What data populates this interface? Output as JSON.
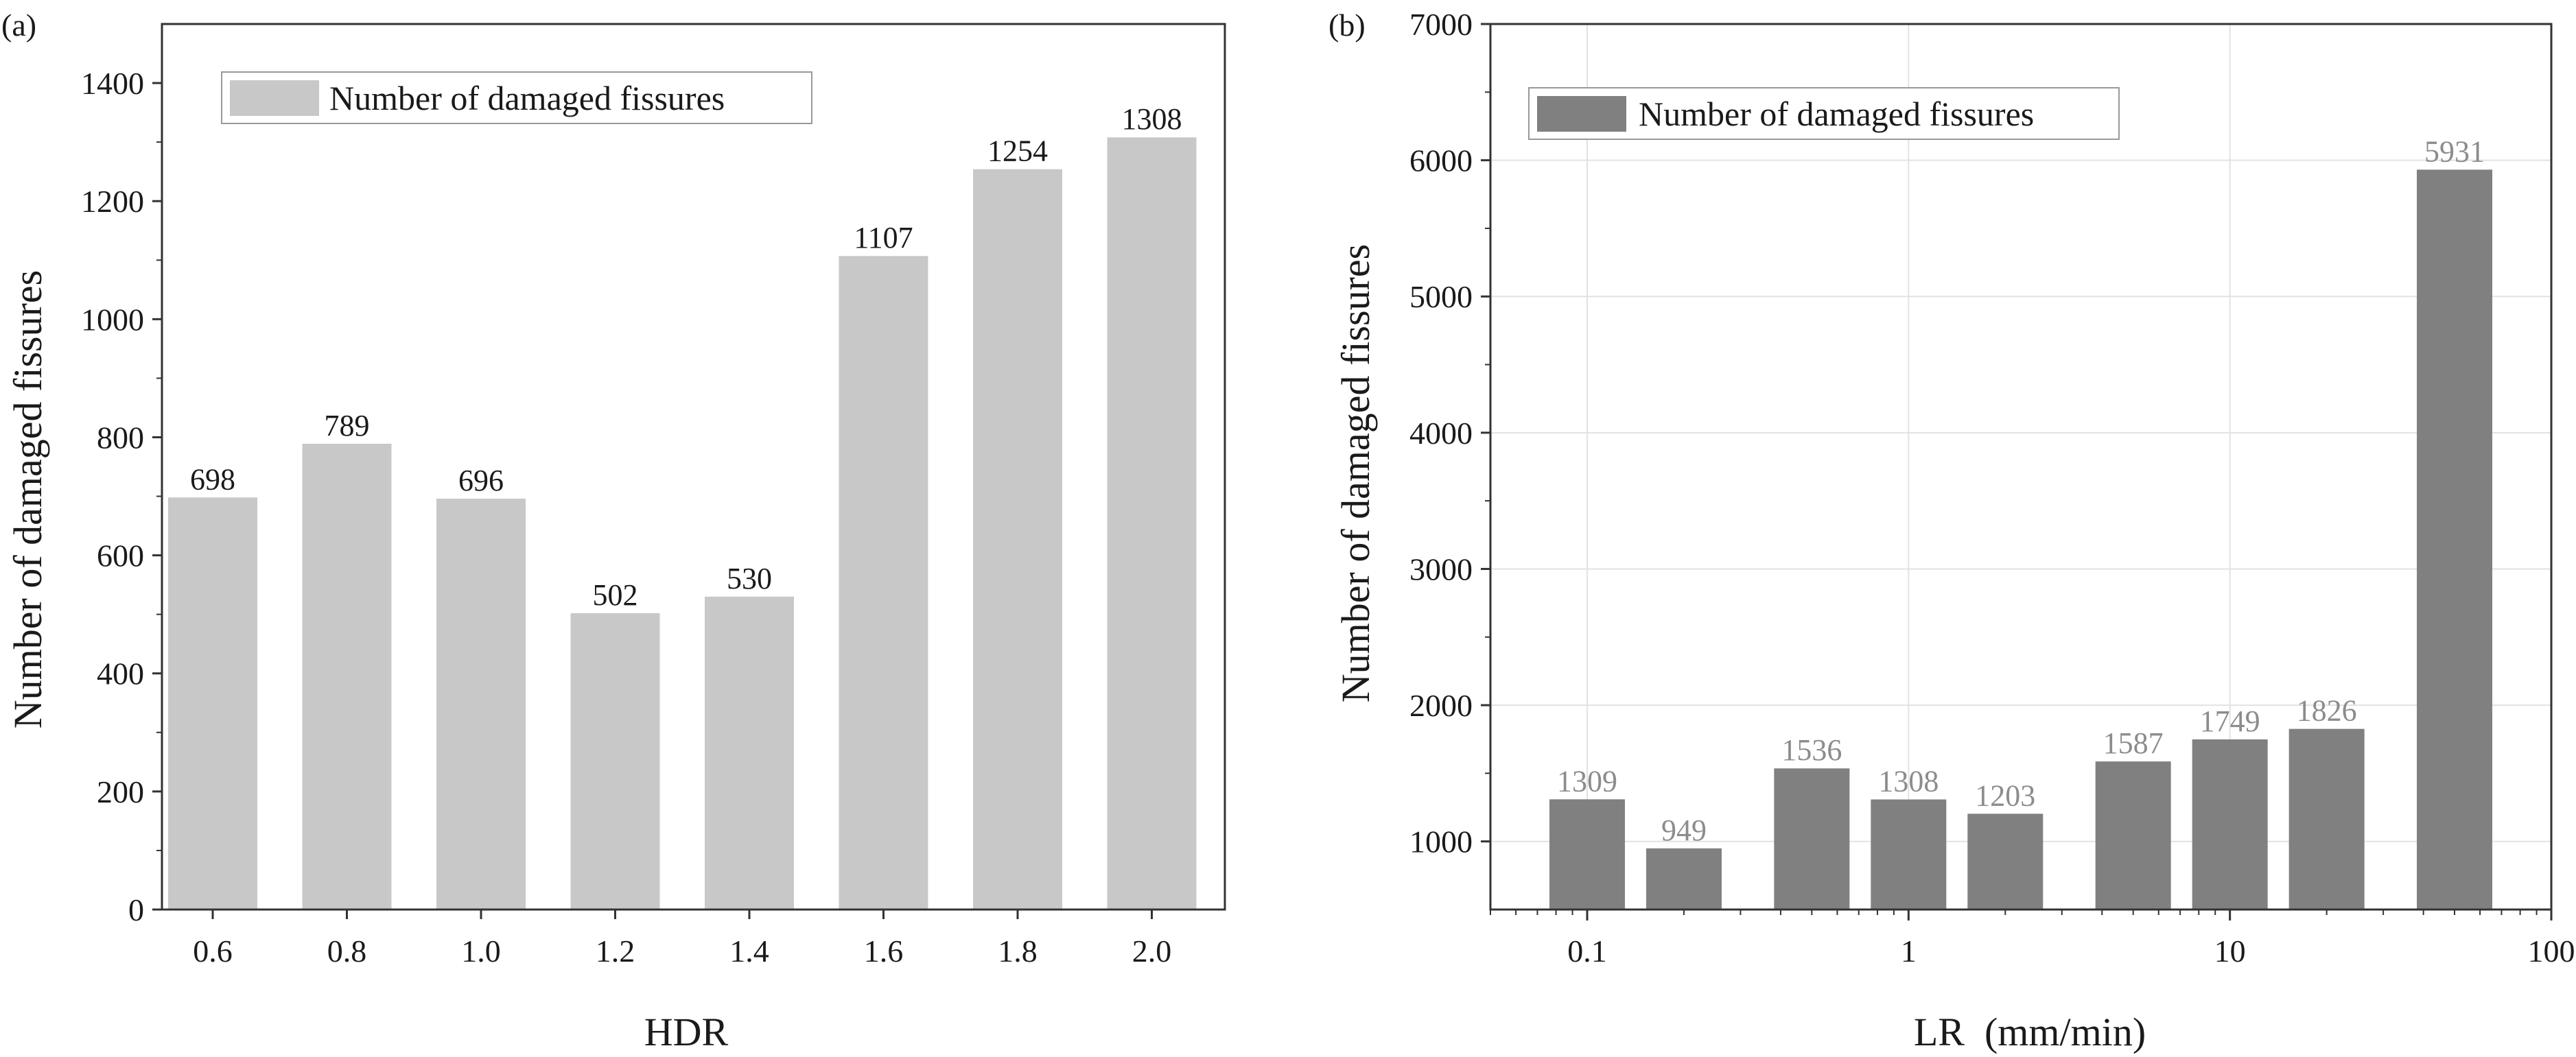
{
  "figure": {
    "panels": [
      "(a)",
      "(b)"
    ]
  },
  "chart_data": [
    {
      "type": "bar",
      "panel": "(a)",
      "title": "",
      "categories": [
        "0.6",
        "0.8",
        "1.0",
        "1.2",
        "1.4",
        "1.6",
        "1.8",
        "2.0"
      ],
      "values": [
        698,
        789,
        696,
        502,
        530,
        1107,
        1254,
        1308
      ],
      "data_labels": [
        "698",
        "789",
        "696",
        "502",
        "530",
        "1107",
        "1254",
        "1308"
      ],
      "xlabel": "HDR",
      "ylabel": "Number of damaged fissures",
      "ylim": [
        0,
        1500
      ],
      "yticks": [
        0,
        200,
        400,
        600,
        800,
        1000,
        1200,
        1400
      ],
      "ytick_labels": [
        "0",
        "200",
        "400",
        "600",
        "800",
        "1000",
        "1200",
        "1400"
      ],
      "legend": [
        {
          "label": "Number of damaged fissures",
          "color": "#c8c8c8"
        }
      ],
      "legend_position": "top-left",
      "bar_color": "#c8c8c8",
      "grid": false
    },
    {
      "type": "bar",
      "panel": "(b)",
      "title": "",
      "x_scale": "log",
      "x": [
        0.1,
        0.2,
        0.5,
        1,
        2,
        5,
        10,
        20,
        50
      ],
      "values": [
        1309,
        949,
        1536,
        1308,
        1203,
        1587,
        1749,
        1826,
        5931
      ],
      "data_labels": [
        "1309",
        "949",
        "1536",
        "1308",
        "1203",
        "1587",
        "1749",
        "1826",
        "5931"
      ],
      "xlabel": "LR  (mm/min)",
      "ylabel": "Number of damaged fissures",
      "xlim": [
        0.05,
        100
      ],
      "xticks": [
        0.1,
        1,
        10,
        100
      ],
      "xtick_labels": [
        "0.1",
        "1",
        "10",
        "100"
      ],
      "ylim": [
        500,
        7000
      ],
      "yticks": [
        1000,
        2000,
        3000,
        4000,
        5000,
        6000,
        7000
      ],
      "ytick_labels": [
        "1000",
        "2000",
        "3000",
        "4000",
        "5000",
        "6000",
        "7000"
      ],
      "legend": [
        {
          "label": "Number of damaged fissures",
          "color": "#808080"
        }
      ],
      "legend_position": "top-left",
      "bar_color": "#808080",
      "grid": true
    }
  ]
}
